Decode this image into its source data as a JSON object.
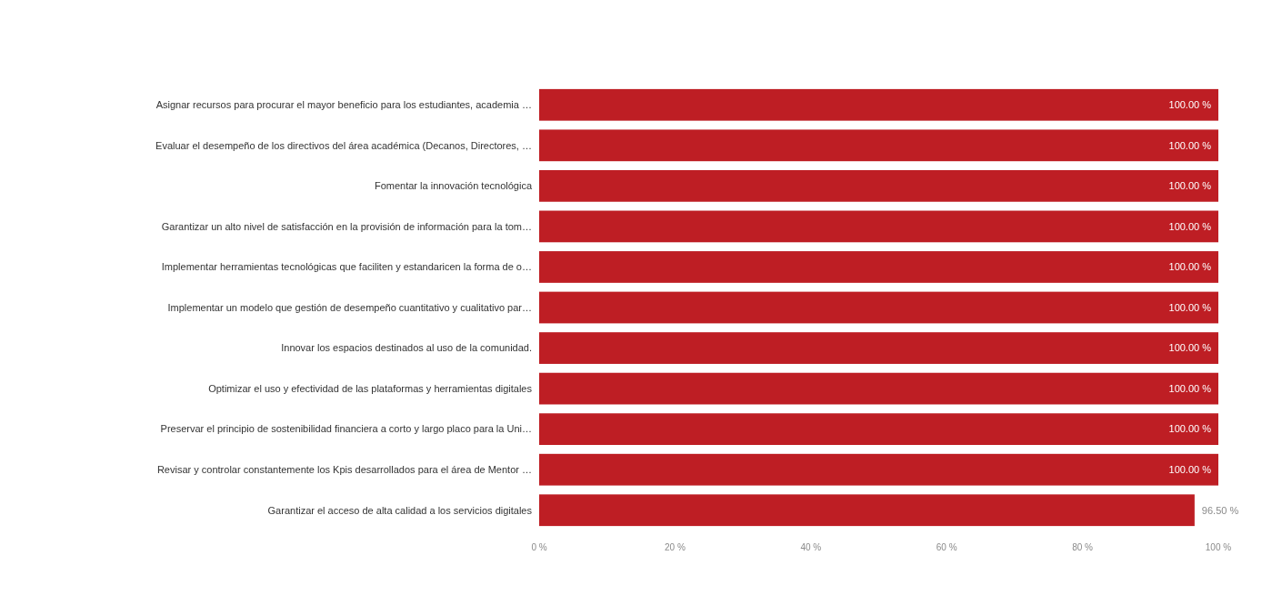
{
  "chart_data": {
    "type": "bar",
    "orientation": "horizontal",
    "categories": [
      "Asignar recursos para procurar el mayor beneficio para los estudiantes, academia …",
      "Evaluar el desempeño de los directivos del área académica (Decanos, Directores, …",
      "Fomentar la innovación tecnológica",
      "Garantizar un alto nivel de satisfacción en la provisión de información para la tom…",
      "Implementar herramientas tecnológicas que faciliten y estandaricen la forma de o…",
      "Implementar un modelo que gestión de desempeño cuantitativo y cualitativo par…",
      "Innovar los espacios destinados al uso de la comunidad.",
      "Optimizar el uso y efectividad de las plataformas y herramientas digitales",
      "Preservar el principio de sostenibilidad financiera a corto y largo placo para la Uni…",
      "Revisar y controlar constantemente los Kpis desarrollados para el área de Mentor …",
      "Garantizar el acceso de alta calidad a los servicios digitales"
    ],
    "values": [
      100,
      100,
      100,
      100,
      100,
      100,
      100,
      100,
      100,
      100,
      96.5
    ],
    "value_labels": [
      "100.00 %",
      "100.00 %",
      "100.00 %",
      "100.00 %",
      "100.00 %",
      "100.00 %",
      "100.00 %",
      "100.00 %",
      "100.00 %",
      "100.00 %",
      "96.50 %"
    ],
    "color": "#be1e24",
    "xlim": [
      0,
      100
    ],
    "xticks": [
      {
        "value": 0,
        "label": "0 %"
      },
      {
        "value": 20,
        "label": "20 %"
      },
      {
        "value": 40,
        "label": "40 %"
      },
      {
        "value": 60,
        "label": "60 %"
      },
      {
        "value": 80,
        "label": "80 %"
      },
      {
        "value": 100,
        "label": "100 %"
      }
    ],
    "grid": false
  }
}
